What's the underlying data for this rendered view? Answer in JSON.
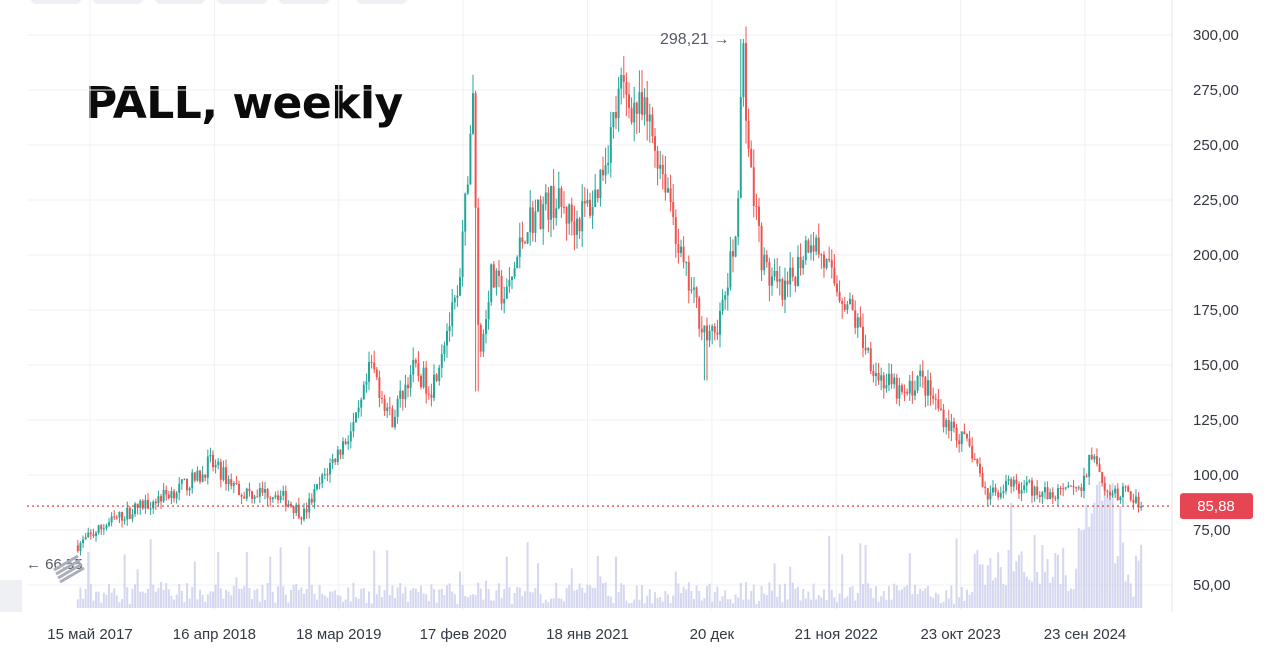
{
  "chart_data": {
    "type": "candlestick",
    "title": "PALL, weekly",
    "interval": "weekly",
    "x_tick_labels": [
      "15 май 2017",
      "16 апр 2018",
      "18 мар 2019",
      "17 фев 2020",
      "18 янв 2021",
      "20 дек",
      "21 ноя 2022",
      "23 окт 2023",
      "23 сен 2024"
    ],
    "y_tick_labels": [
      "300,00",
      "275,00",
      "250,00",
      "225,00",
      "200,00",
      "175,00",
      "150,00",
      "125,00",
      "100,00",
      "75,00",
      "50,00"
    ],
    "y_ticks": [
      300,
      275,
      250,
      225,
      200,
      175,
      150,
      125,
      100,
      75,
      50
    ],
    "ylim": [
      40,
      306
    ],
    "x_range": [
      "2017-04",
      "2025-03"
    ],
    "grid": true,
    "series": [
      {
        "values_close": [
          [
            2017.28,
            68
          ],
          [
            2017.5,
            78
          ],
          [
            2017.75,
            86
          ],
          [
            2018.0,
            93
          ],
          [
            2018.2,
            100
          ],
          [
            2018.25,
            106
          ],
          [
            2018.5,
            92
          ],
          [
            2018.75,
            92
          ],
          [
            2018.95,
            82
          ],
          [
            2019.15,
            105
          ],
          [
            2019.35,
            125
          ],
          [
            2019.45,
            150
          ],
          [
            2019.6,
            125
          ],
          [
            2019.75,
            148
          ],
          [
            2019.9,
            140
          ],
          [
            2020.0,
            165
          ],
          [
            2020.1,
            180
          ],
          [
            2020.15,
            225
          ],
          [
            2020.2,
            275
          ],
          [
            2020.25,
            150
          ],
          [
            2020.33,
            190
          ],
          [
            2020.45,
            180
          ],
          [
            2020.6,
            215
          ],
          [
            2020.8,
            225
          ],
          [
            2020.95,
            215
          ],
          [
            2021.1,
            225
          ],
          [
            2021.3,
            275
          ],
          [
            2021.5,
            260
          ],
          [
            2021.65,
            230
          ],
          [
            2021.75,
            195
          ],
          [
            2021.95,
            160
          ],
          [
            2022.05,
            175
          ],
          [
            2022.15,
            210
          ],
          [
            2022.2,
            295
          ],
          [
            2022.25,
            240
          ],
          [
            2022.35,
            195
          ],
          [
            2022.5,
            180
          ],
          [
            2022.7,
            210
          ],
          [
            2022.85,
            190
          ],
          [
            2023.0,
            175
          ],
          [
            2023.2,
            145
          ],
          [
            2023.4,
            135
          ],
          [
            2023.5,
            145
          ],
          [
            2023.7,
            125
          ],
          [
            2023.9,
            110
          ],
          [
            2024.0,
            90
          ],
          [
            2024.15,
            95
          ],
          [
            2024.3,
            95
          ],
          [
            2024.5,
            90
          ],
          [
            2024.7,
            95
          ],
          [
            2024.8,
            112
          ],
          [
            2024.9,
            90
          ],
          [
            2025.05,
            92
          ],
          [
            2025.15,
            86
          ]
        ]
      }
    ],
    "last_price": 85.88,
    "last_price_label": "85,88",
    "peak_label": "298,21 →",
    "first_label": "← 66,55",
    "volume": true
  },
  "colors": {
    "up": "#26a69a",
    "down": "#ef5350",
    "volume": "#c5cae9",
    "price_line": "#d32f2f",
    "badge": "#e64553",
    "grid": "#eef0f3"
  },
  "icons": {
    "watermark": "exchange-logo-icon"
  }
}
